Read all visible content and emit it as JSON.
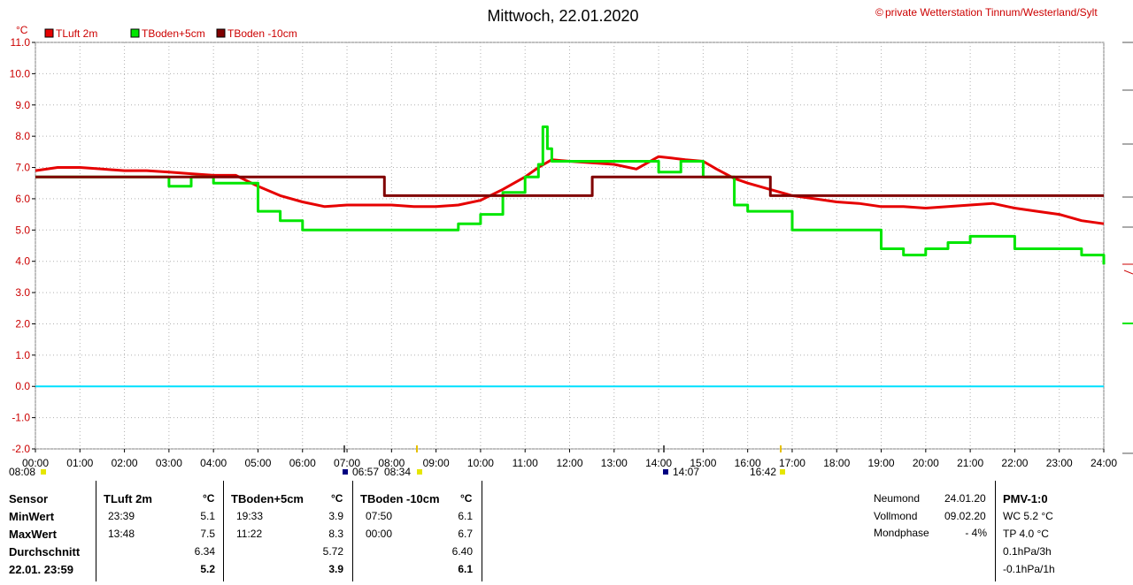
{
  "title": "Mittwoch, 22.01.2020",
  "credit_symbol": "©",
  "credit": "private Wetterstation Tinnum/Westerland/Sylt",
  "colors": {
    "tluft": "#e60000",
    "tboden5": "#00e600",
    "tboden10": "#800000",
    "zero_line": "#00e0ff",
    "axis_text": "#cc0000"
  },
  "legend": [
    {
      "label": "TLuft 2m",
      "color": "#e60000"
    },
    {
      "label": "TBoden+5cm",
      "color": "#00e600"
    },
    {
      "label": "TBoden -10cm",
      "color": "#800000"
    }
  ],
  "markers": [
    {
      "label": "08:08"
    },
    {
      "label": "06:57"
    },
    {
      "label": "08:34"
    },
    {
      "label": "14:07"
    },
    {
      "label": "16:42"
    }
  ],
  "chart_data": {
    "type": "line",
    "title": "Mittwoch, 22.01.2020",
    "ylabel": "°C",
    "ylim": [
      -2.0,
      11.0
    ],
    "yticks": [
      "11.0",
      "10.0",
      "9.0",
      "8.0",
      "7.0",
      "6.0",
      "5.0",
      "4.0",
      "3.0",
      "2.0",
      "1.0",
      "0.0",
      "-1.0",
      "-2.0"
    ],
    "xlim": [
      0,
      24
    ],
    "xticks": [
      "00:00",
      "01:00",
      "02:00",
      "03:00",
      "04:00",
      "05:00",
      "06:00",
      "07:00",
      "08:00",
      "09:00",
      "10:00",
      "11:00",
      "12:00",
      "13:00",
      "14:00",
      "15:00",
      "16:00",
      "17:00",
      "18:00",
      "19:00",
      "20:00",
      "21:00",
      "22:00",
      "23:00",
      "24:00"
    ],
    "grid": true,
    "series": [
      {
        "name": "TLuft 2m",
        "x": [
          0,
          0.5,
          1,
          1.5,
          2,
          2.5,
          3,
          3.5,
          4,
          4.5,
          5,
          5.5,
          6,
          6.5,
          7,
          7.5,
          8,
          8.5,
          9,
          9.5,
          10,
          10.5,
          11,
          11.3,
          11.6,
          12,
          12.5,
          13,
          13.5,
          14,
          14.3,
          14.6,
          15,
          15.3,
          15.7,
          16,
          16.5,
          17,
          17.5,
          18,
          18.5,
          19,
          19.5,
          20,
          20.5,
          21,
          21.5,
          22,
          22.5,
          23,
          23.5,
          24
        ],
        "values": [
          6.9,
          7.0,
          7.0,
          6.95,
          6.9,
          6.9,
          6.85,
          6.8,
          6.75,
          6.75,
          6.4,
          6.1,
          5.9,
          5.75,
          5.8,
          5.8,
          5.8,
          5.75,
          5.75,
          5.8,
          5.95,
          6.3,
          6.7,
          7.0,
          7.25,
          7.2,
          7.15,
          7.1,
          6.95,
          7.35,
          7.3,
          7.25,
          7.2,
          6.95,
          6.65,
          6.5,
          6.3,
          6.1,
          6.0,
          5.9,
          5.85,
          5.75,
          5.75,
          5.7,
          5.75,
          5.8,
          5.85,
          5.7,
          5.6,
          5.5,
          5.3,
          5.2
        ]
      },
      {
        "name": "TBoden+5cm",
        "x": [
          0,
          2.85,
          3,
          3.4,
          3.5,
          4,
          5,
          5.5,
          6,
          7,
          8,
          9,
          9.5,
          10,
          10.5,
          11,
          11.3,
          11.4,
          11.5,
          11.6,
          12,
          13,
          14,
          14.5,
          15,
          15.7,
          16,
          17,
          17.5,
          18,
          19,
          19.5,
          20,
          20.5,
          21,
          21.5,
          22,
          23,
          23.5,
          24
        ],
        "values": [
          6.7,
          6.7,
          6.4,
          6.4,
          6.7,
          6.5,
          5.6,
          5.3,
          5.0,
          5.0,
          5.0,
          5.0,
          5.2,
          5.5,
          6.2,
          6.7,
          7.1,
          8.3,
          7.6,
          7.2,
          7.2,
          7.2,
          6.85,
          7.2,
          6.7,
          5.8,
          5.6,
          5.0,
          5.0,
          5.0,
          4.4,
          4.2,
          4.4,
          4.6,
          4.8,
          4.8,
          4.4,
          4.4,
          4.2,
          3.9
        ]
      },
      {
        "name": "TBoden -10cm",
        "x": [
          0,
          7.83,
          7.84,
          12.5,
          12.51,
          16.5,
          16.51,
          24
        ],
        "values": [
          6.7,
          6.7,
          6.1,
          6.1,
          6.7,
          6.7,
          6.1,
          6.1
        ]
      }
    ]
  },
  "table": {
    "headers": {
      "sensor": "Sensor",
      "s1": "TLuft 2m",
      "s2": "TBoden+5cm",
      "s3": "TBoden -10cm",
      "unit": "°C"
    },
    "rows": [
      {
        "label": "MinWert",
        "s1_time": "23:39",
        "s1_val": "5.1",
        "s2_time": "19:33",
        "s2_val": "3.9",
        "s3_time": "07:50",
        "s3_val": "6.1"
      },
      {
        "label": "MaxWert",
        "s1_time": "13:48",
        "s1_val": "7.5",
        "s2_time": "11:22",
        "s2_val": "8.3",
        "s3_time": "00:00",
        "s3_val": "6.7"
      },
      {
        "label": "Durchschnitt",
        "s1_time": "",
        "s1_val": "6.34",
        "s2_time": "",
        "s2_val": "5.72",
        "s3_time": "",
        "s3_val": "6.40"
      },
      {
        "label": "22.01. 23:59",
        "s1_time": "",
        "s1_val": "5.2",
        "s2_time": "",
        "s2_val": "3.9",
        "s3_time": "",
        "s3_val": "6.1"
      }
    ]
  },
  "moon": [
    {
      "label": "Neumond",
      "value": "24.01.20"
    },
    {
      "label": "Vollmond",
      "value": "09.02.20"
    },
    {
      "label": "Mondphase",
      "value": "- 4%"
    }
  ],
  "pmv": {
    "title": "PMV-1:0",
    "lines": [
      "WC 5.2 °C",
      "TP 4.0 °C",
      "0.1hPa/3h",
      "-0.1hPa/1h"
    ]
  }
}
